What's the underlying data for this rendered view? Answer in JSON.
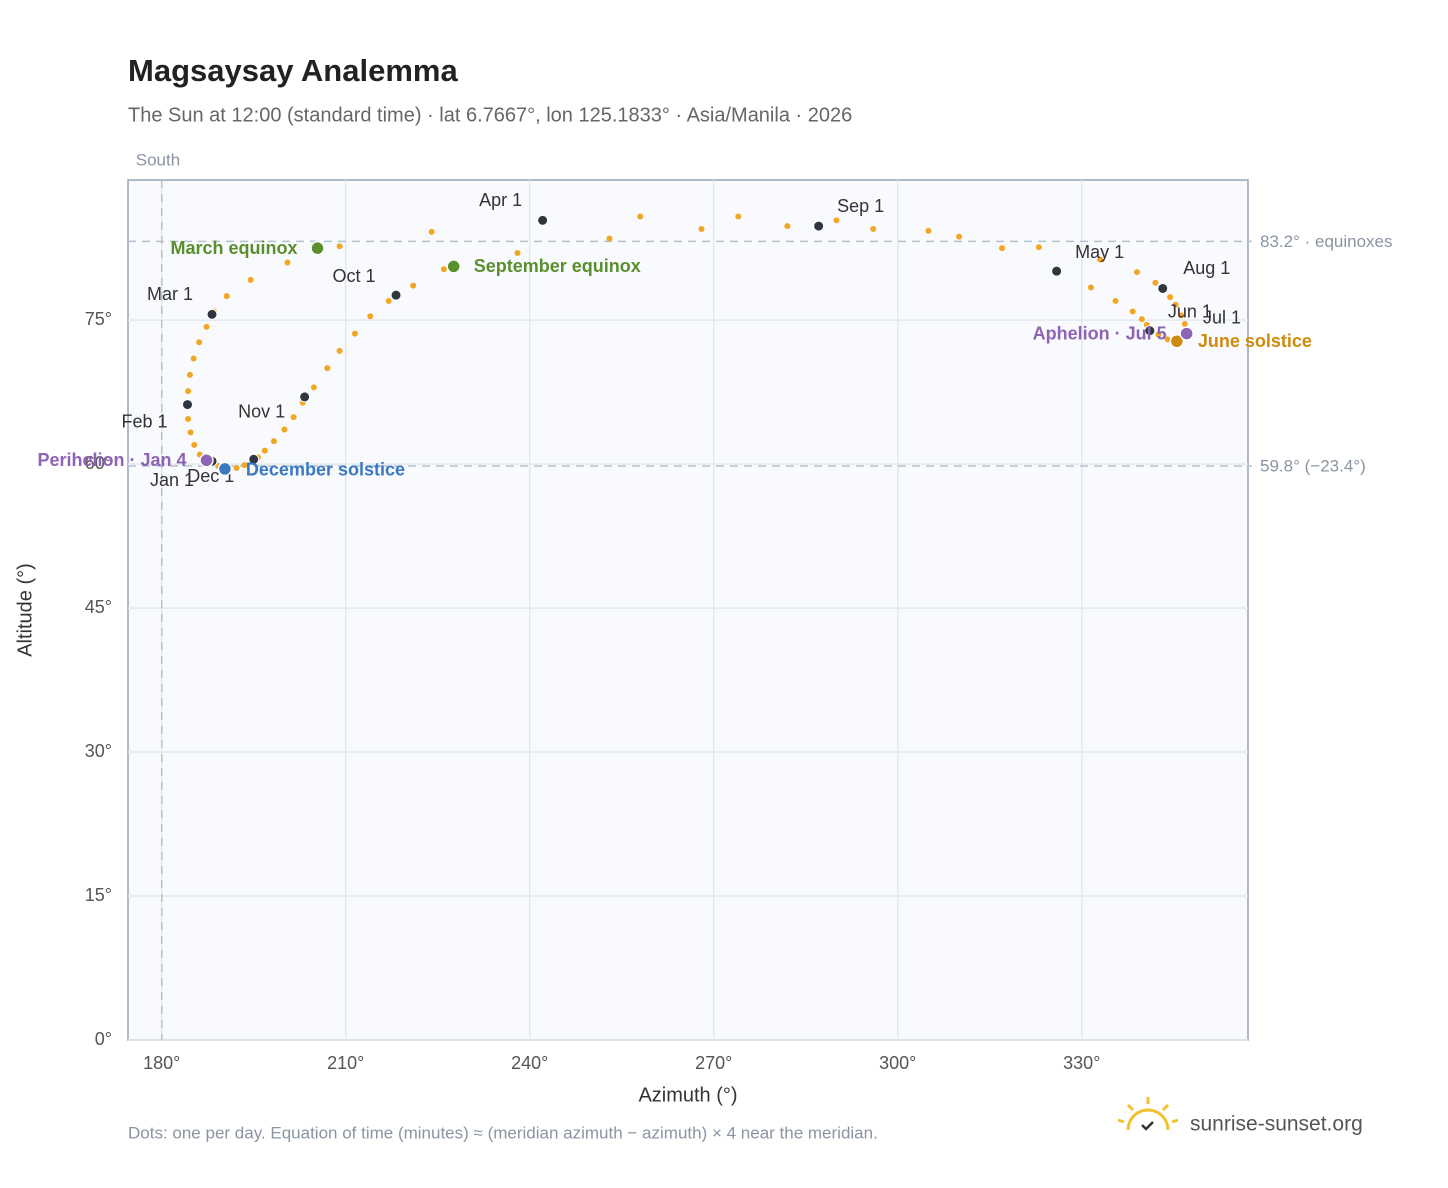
{
  "chart_data": {
    "type": "scatter",
    "title": "Magsaysay Analemma",
    "subtitle": "The Sun at 12:00 (standard time) · lat 6.7667°, lon 125.1833° · Asia/Manila · 2026",
    "x_label": "Azimuth (°)",
    "y_label": "Altitude (°)",
    "footnote": "Dots: one per day. Equation of time (minutes) ≈ (meridian azimuth − azimuth) × 4 near the meridian.",
    "brand": "sunrise-sunset.org",
    "color": "#f2a623",
    "grid": true,
    "xlim": [
      174.5,
      357.1
    ],
    "ylim": [
      0,
      89.6
    ],
    "xticks": [
      {
        "value": 180,
        "label": "180°"
      },
      {
        "value": 210,
        "label": "210°"
      },
      {
        "value": 240,
        "label": "240°"
      },
      {
        "value": 270,
        "label": "270°"
      },
      {
        "value": 300,
        "label": "300°"
      },
      {
        "value": 330,
        "label": "330°"
      }
    ],
    "yticks": [
      {
        "value": 0,
        "label": "0°"
      },
      {
        "value": 15,
        "label": "15°"
      },
      {
        "value": 30,
        "label": "30°"
      },
      {
        "value": 45,
        "label": "45°"
      },
      {
        "value": 60,
        "label": "60°"
      },
      {
        "value": 75,
        "label": "75°"
      }
    ],
    "x": [
      188.2,
      187.2,
      186.2,
      185.3,
      184.7,
      184.3,
      184.2,
      184.3,
      184.6,
      185.2,
      186.1,
      187.3,
      188.5,
      190.6,
      194.5,
      200.5,
      209,
      224,
      242.1,
      258,
      274,
      290,
      305,
      317,
      325.9,
      331.5,
      335.5,
      338.3,
      339.8,
      340.6,
      341.0,
      342.5,
      344,
      345.0,
      345.5,
      346.2,
      346.9,
      347.1,
      346.8,
      346.2,
      345.3,
      344.4,
      343.5,
      342,
      339,
      333,
      323,
      310,
      296,
      282,
      268,
      253,
      238,
      226,
      221,
      217,
      214,
      211.5,
      209,
      207,
      204.8,
      203,
      201.5,
      200,
      198.3,
      196.8,
      195.7,
      194.7,
      193.5,
      192.2,
      191,
      190.1,
      189.2
    ],
    "values": [
      60.3,
      60.5,
      61.0,
      62.0,
      63.3,
      64.7,
      66.1,
      67.6,
      69.3,
      71.0,
      72.7,
      74.3,
      75.9,
      77.5,
      79.2,
      81.0,
      82.7,
      84.2,
      85.4,
      85.8,
      85.8,
      85.4,
      84.3,
      82.5,
      80.1,
      78.4,
      77.0,
      75.9,
      75.1,
      74.5,
      74.0,
      73.5,
      73.0,
      72.8,
      72.8,
      73.0,
      73.4,
      73.8,
      74.6,
      75.5,
      76.6,
      77.4,
      78.1,
      78.9,
      80.0,
      81.3,
      82.6,
      83.7,
      84.5,
      84.8,
      84.5,
      83.5,
      82.0,
      80.3,
      78.6,
      77.0,
      75.4,
      73.6,
      71.8,
      70.0,
      68.0,
      66.4,
      64.9,
      63.6,
      62.4,
      61.4,
      60.7,
      60.3,
      59.9,
      59.6,
      59.5,
      59.5,
      59.8
    ],
    "reference_lines": [
      {
        "value": 83.2,
        "label": "83.2° · equinoxes"
      },
      {
        "value": 59.8,
        "label": "59.8° (−23.4°)"
      }
    ],
    "meridian": {
      "value": 180,
      "label": "South"
    },
    "month_markers": [
      {
        "label": "Jan 1",
        "x": 188.2,
        "y": 60.3
      },
      {
        "label": "Feb 1",
        "x": 184.2,
        "y": 66.2
      },
      {
        "label": "Mar 1",
        "x": 188.2,
        "y": 75.6
      },
      {
        "label": "Apr 1",
        "x": 242.1,
        "y": 85.4
      },
      {
        "label": "May 1",
        "x": 325.9,
        "y": 80.1
      },
      {
        "label": "Jun 1",
        "x": 341.1,
        "y": 73.9
      },
      {
        "label": "Jul 1",
        "x": 347.0,
        "y": 73.5
      },
      {
        "label": "Aug 1",
        "x": 343.2,
        "y": 78.3
      },
      {
        "label": "Sep 1",
        "x": 287.1,
        "y": 84.8
      },
      {
        "label": "Oct 1",
        "x": 218.2,
        "y": 77.6
      },
      {
        "label": "Nov 1",
        "x": 203.3,
        "y": 67.0
      },
      {
        "label": "Dec 1",
        "x": 195.0,
        "y": 60.5
      }
    ],
    "events": [
      {
        "label": "March equinox",
        "x": 205.4,
        "y": 82.5,
        "color": "#5a8f2e"
      },
      {
        "label": "September equinox",
        "x": 227.6,
        "y": 80.6,
        "color": "#5a8f2e"
      },
      {
        "label": "June solstice",
        "x": 345.5,
        "y": 72.8,
        "color": "#d08a0c"
      },
      {
        "label": "December solstice",
        "x": 190.3,
        "y": 59.5,
        "color": "#3a78c0"
      },
      {
        "label": "Perihelion · Jan 4",
        "x": 187.3,
        "y": 60.4,
        "color": "#8e63b5"
      },
      {
        "label": "Aphelion · Jul 5",
        "x": 347.1,
        "y": 73.6,
        "color": "#8e63b5"
      }
    ]
  }
}
